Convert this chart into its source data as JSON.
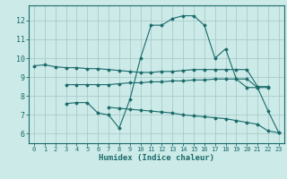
{
  "bg_color": "#cceae7",
  "grid_color": "#aacccc",
  "line_color": "#1a6b6b",
  "xlabel": "Humidex (Indice chaleur)",
  "xlim": [
    -0.5,
    23.5
  ],
  "ylim": [
    5.5,
    12.8
  ],
  "yticks": [
    6,
    7,
    8,
    9,
    10,
    11,
    12
  ],
  "xticks": [
    0,
    1,
    2,
    3,
    4,
    5,
    6,
    7,
    8,
    9,
    10,
    11,
    12,
    13,
    14,
    15,
    16,
    17,
    18,
    19,
    20,
    21,
    22,
    23
  ],
  "series": [
    {
      "x": [
        0,
        1,
        2,
        3,
        4,
        5,
        6,
        7,
        8,
        9,
        10,
        11,
        12,
        13,
        14,
        15,
        16,
        17,
        18,
        19,
        20,
        21,
        22
      ],
      "y": [
        9.6,
        9.65,
        9.55,
        9.5,
        9.5,
        9.45,
        9.45,
        9.4,
        9.35,
        9.3,
        9.25,
        9.25,
        9.3,
        9.3,
        9.35,
        9.4,
        9.4,
        9.4,
        9.4,
        9.4,
        9.4,
        8.5,
        8.5
      ]
    },
    {
      "x": [
        3,
        4,
        5,
        6,
        7,
        8,
        9,
        10,
        11,
        12,
        13,
        14,
        15,
        16,
        17,
        18,
        19,
        20,
        21,
        22
      ],
      "y": [
        8.6,
        8.6,
        8.6,
        8.6,
        8.6,
        8.65,
        8.7,
        8.7,
        8.75,
        8.75,
        8.8,
        8.8,
        8.85,
        8.85,
        8.9,
        8.9,
        8.9,
        8.9,
        8.45,
        8.45
      ]
    },
    {
      "x": [
        3,
        4,
        5,
        6,
        7,
        8,
        9,
        10,
        11,
        12,
        13,
        14,
        15,
        16,
        17,
        18,
        19,
        20,
        21,
        22,
        23
      ],
      "y": [
        7.6,
        7.65,
        7.65,
        7.1,
        7.0,
        6.3,
        7.8,
        10.0,
        11.75,
        11.75,
        12.1,
        12.25,
        12.25,
        11.75,
        10.0,
        10.5,
        8.9,
        8.45,
        8.45,
        7.2,
        6.05
      ]
    },
    {
      "x": [
        7,
        8,
        9,
        10,
        11,
        12,
        13,
        14,
        15,
        16,
        17,
        18,
        19,
        20,
        21,
        22,
        23
      ],
      "y": [
        7.4,
        7.35,
        7.3,
        7.25,
        7.2,
        7.15,
        7.1,
        7.0,
        6.95,
        6.9,
        6.85,
        6.8,
        6.7,
        6.6,
        6.5,
        6.15,
        6.05
      ]
    }
  ]
}
